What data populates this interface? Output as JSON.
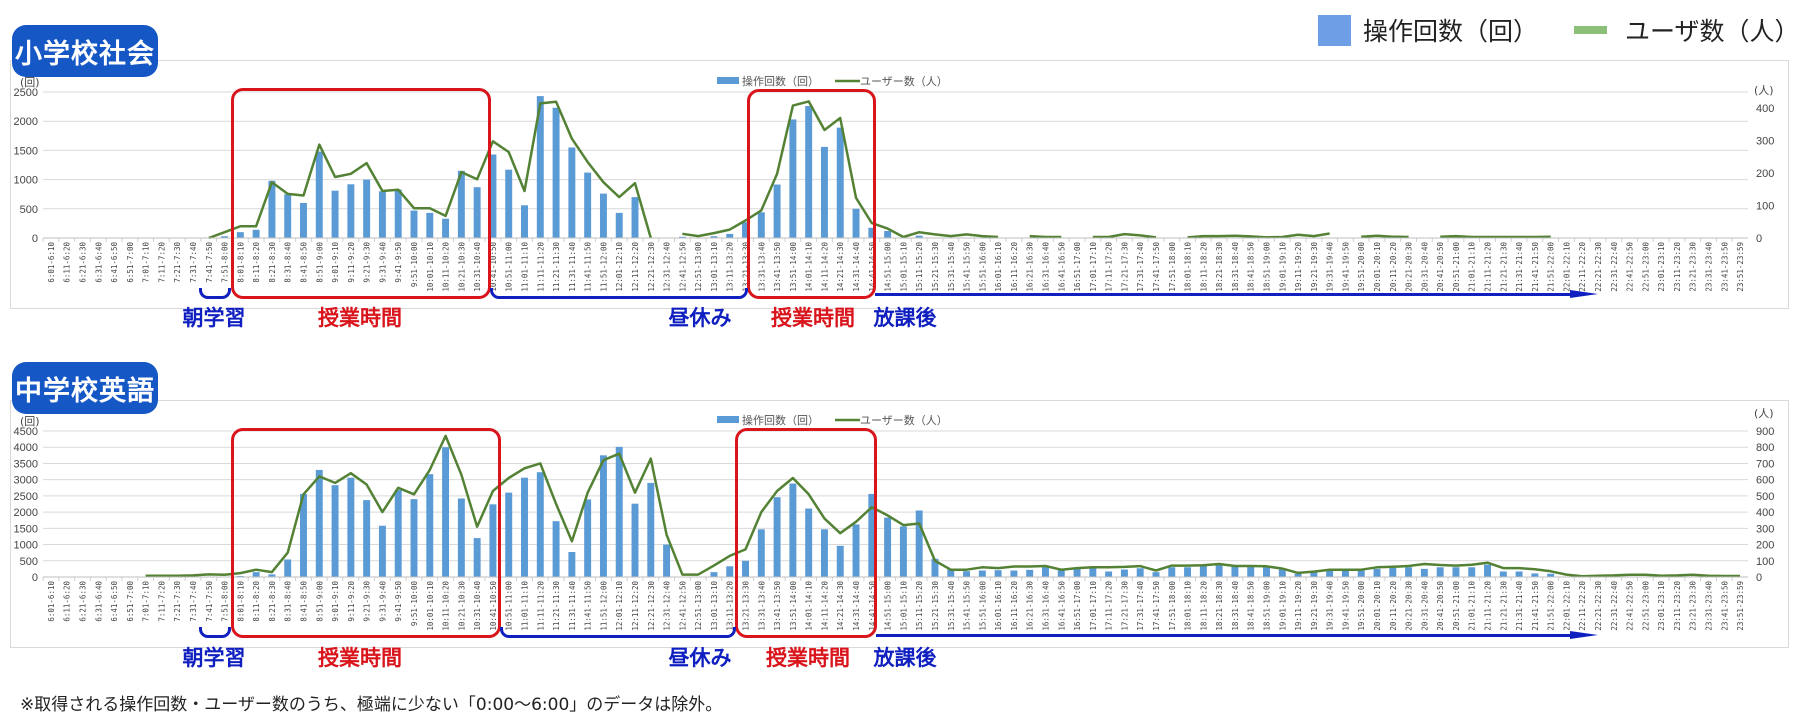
{
  "top_legend": {
    "bar_label": "操作回数（回）",
    "line_label": "ユーザ数（人）",
    "bar_color": "#6e9fe6",
    "line_color": "#8cbf7a"
  },
  "footnote": "※取得される操作回数・ユーザー数のうち、極端に少ない「0:00〜6:00」のデータは除外。",
  "annotations": {
    "morning": "朝学習",
    "class": "授業時間",
    "lunch": "昼休み",
    "after": "放課後",
    "class_color": "#d9141b",
    "period_color": "#1020c0"
  },
  "chart_data": [
    {
      "type": "bar+line",
      "title": "小学校社会",
      "bar_color": "#5b9bd5",
      "line_color": "#548235",
      "legend": {
        "bar": "操作回数（回）",
        "line": "ユーザー数（人）",
        "position": "top-center"
      },
      "y_left": {
        "unit": "(回)",
        "ylim": [
          0,
          2500
        ],
        "ticks": [
          0,
          500,
          1000,
          1500,
          2000,
          2500
        ]
      },
      "y_right": {
        "unit": "(人)",
        "ylim": [
          0,
          450
        ],
        "ticks": [
          0,
          100,
          200,
          300,
          400
        ]
      },
      "grid": true,
      "series": [
        {
          "name": "操作回数（回）",
          "kind": "bar",
          "values": [
            0,
            0,
            0,
            0,
            0,
            0,
            0,
            0,
            0,
            0,
            0,
            30,
            100,
            140,
            980,
            750,
            600,
            1480,
            810,
            920,
            1000,
            800,
            830,
            470,
            430,
            330,
            1150,
            870,
            1430,
            1170,
            560,
            2430,
            2230,
            1550,
            1120,
            760,
            430,
            700,
            0,
            0,
            20,
            0,
            30,
            70,
            270,
            440,
            915,
            2030,
            2260,
            1560,
            1890,
            500,
            175,
            120,
            0,
            40,
            0,
            0,
            0,
            0,
            0,
            0,
            0,
            0,
            0,
            0,
            0,
            0,
            0,
            0,
            0,
            0,
            0,
            0,
            0,
            0,
            0,
            0,
            0,
            0,
            0,
            0,
            0,
            0,
            0,
            0,
            0,
            0,
            0,
            0,
            0,
            0,
            0,
            0,
            0,
            0,
            0,
            0,
            0,
            0,
            0,
            0,
            0,
            0,
            0,
            0,
            0,
            0
          ]
        },
        {
          "name": "ユーザー数（人）",
          "kind": "line",
          "axis": "right",
          "values": [
            null,
            null,
            null,
            null,
            null,
            null,
            null,
            null,
            null,
            null,
            0,
            18,
            36,
            36,
            172,
            136,
            131,
            288,
            188,
            198,
            231,
            145,
            149,
            92,
            92,
            68,
            203,
            181,
            298,
            265,
            145,
            415,
            420,
            306,
            234,
            172,
            126,
            169,
            0,
            null,
            13,
            6,
            15,
            26,
            54,
            85,
            198,
            408,
            421,
            333,
            370,
            124,
            46,
            29,
            3,
            18,
            11,
            6,
            11,
            6,
            3,
            null,
            6,
            3,
            3,
            null,
            3,
            3,
            12,
            8,
            2,
            null,
            2,
            6,
            6,
            7,
            5,
            2,
            3,
            10,
            6,
            14,
            null,
            4,
            7,
            4,
            3,
            null,
            4,
            6,
            3,
            3,
            3,
            3,
            3,
            4,
            null,
            null,
            null,
            null,
            null,
            null,
            null,
            null,
            null,
            null,
            null,
            null
          ]
        }
      ]
    },
    {
      "type": "bar+line",
      "title": "中学校英語",
      "bar_color": "#5b9bd5",
      "line_color": "#548235",
      "legend": {
        "bar": "操作回数（回）",
        "line": "ユーザー数（人）",
        "position": "top-center"
      },
      "y_left": {
        "unit": "(回)",
        "ylim": [
          0,
          4500
        ],
        "ticks": [
          0,
          500,
          1000,
          1500,
          2000,
          2500,
          3000,
          3500,
          4000,
          4500
        ]
      },
      "y_right": {
        "unit": "(人)",
        "ylim": [
          0,
          900
        ],
        "ticks": [
          0,
          100,
          200,
          300,
          400,
          500,
          600,
          700,
          800,
          900
        ]
      },
      "grid": true,
      "series": [
        {
          "name": "操作回数（回）",
          "kind": "bar",
          "values": [
            0,
            0,
            0,
            0,
            0,
            0,
            0,
            0,
            0,
            0,
            0,
            0,
            30,
            150,
            80,
            540,
            2560,
            3300,
            2830,
            3060,
            2370,
            1580,
            2680,
            2400,
            3170,
            4000,
            2420,
            1200,
            2240,
            2600,
            3060,
            3230,
            1720,
            770,
            2390,
            3750,
            4010,
            2260,
            2900,
            1000,
            0,
            0,
            150,
            330,
            500,
            1470,
            2460,
            2880,
            2110,
            1470,
            960,
            1620,
            2560,
            1830,
            1560,
            2050,
            560,
            230,
            180,
            200,
            210,
            200,
            220,
            300,
            240,
            270,
            270,
            170,
            230,
            270,
            150,
            300,
            300,
            350,
            380,
            320,
            320,
            300,
            230,
            100,
            160,
            230,
            200,
            200,
            250,
            280,
            300,
            250,
            300,
            300,
            300,
            380,
            170,
            170,
            110,
            100,
            0,
            0,
            0,
            0,
            0,
            0,
            0,
            0,
            0,
            0,
            0,
            0
          ]
        },
        {
          "name": "ユーザー数（人）",
          "kind": "line",
          "axis": "right",
          "values": [
            null,
            null,
            null,
            null,
            null,
            null,
            8,
            8,
            8,
            10,
            16,
            14,
            24,
            45,
            30,
            150,
            510,
            620,
            580,
            640,
            570,
            400,
            550,
            510,
            660,
            870,
            630,
            310,
            530,
            610,
            670,
            700,
            450,
            220,
            520,
            720,
            760,
            520,
            730,
            260,
            15,
            15,
            70,
            130,
            170,
            400,
            530,
            610,
            510,
            360,
            270,
            340,
            430,
            380,
            320,
            330,
            100,
            45,
            45,
            60,
            55,
            65,
            65,
            68,
            45,
            55,
            60,
            60,
            62,
            67,
            40,
            70,
            70,
            72,
            80,
            68,
            68,
            66,
            52,
            25,
            33,
            45,
            45,
            45,
            60,
            63,
            68,
            80,
            74,
            70,
            76,
            88,
            55,
            55,
            48,
            35,
            15,
            5,
            8,
            10,
            14,
            14,
            8,
            10,
            14,
            8,
            6,
            6
          ]
        }
      ]
    }
  ],
  "categories": [
    "6:01-6:10",
    "6:11-6:20",
    "6:21-6:30",
    "6:31-6:40",
    "6:41-6:50",
    "6:51-7:00",
    "7:01-7:10",
    "7:11-7:20",
    "7:21-7:30",
    "7:31-7:40",
    "7:41-7:50",
    "7:51-8:00",
    "8:01-8:10",
    "8:11-8:20",
    "8:21-8:30",
    "8:31-8:40",
    "8:41-8:50",
    "8:51-9:00",
    "9:01-9:10",
    "9:11-9:20",
    "9:21-9:30",
    "9:31-9:40",
    "9:41-9:50",
    "9:51-10:00",
    "10:01-10:10",
    "10:11-10:20",
    "10:21-10:30",
    "10:31-10:40",
    "10:41-10:50",
    "10:51-11:00",
    "11:01-11:10",
    "11:11-11:20",
    "11:21-11:30",
    "11:31-11:40",
    "11:41-11:50",
    "11:51-12:00",
    "12:01-12:10",
    "12:11-12:20",
    "12:21-12:30",
    "12:31-12:40",
    "12:41-12:50",
    "12:51-13:00",
    "13:01-13:10",
    "13:11-13:20",
    "13:21-13:30",
    "13:31-13:40",
    "13:41-13:50",
    "13:51-14:00",
    "14:01-14:10",
    "14:11-14:20",
    "14:21-14:30",
    "14:31-14:40",
    "14:41-14:50",
    "14:51-15:00",
    "15:01-15:10",
    "15:11-15:20",
    "15:21-15:30",
    "15:31-15:40",
    "15:41-15:50",
    "15:51-16:00",
    "16:01-16:10",
    "16:11-16:20",
    "16:21-16:30",
    "16:31-16:40",
    "16:41-16:50",
    "16:51-17:00",
    "17:01-17:10",
    "17:11-17:20",
    "17:21-17:30",
    "17:31-17:40",
    "17:41-17:50",
    "17:51-18:00",
    "18:01-18:10",
    "18:11-18:20",
    "18:21-18:30",
    "18:31-18:40",
    "18:41-18:50",
    "18:51-19:00",
    "19:01-19:10",
    "19:11-19:20",
    "19:21-19:30",
    "19:31-19:40",
    "19:41-19:50",
    "19:51-20:00",
    "20:01-20:10",
    "20:11-20:20",
    "20:21-20:30",
    "20:31-20:40",
    "20:41-20:50",
    "20:51-21:00",
    "21:01-21:10",
    "21:11-21:20",
    "21:21-21:30",
    "21:31-21:40",
    "21:41-21:50",
    "21:51-22:00",
    "22:01-22:10",
    "22:11-22:20",
    "22:21-22:30",
    "22:31-22:40",
    "22:41-22:50",
    "22:51-23:00",
    "23:01-23:10",
    "23:11-23:20",
    "23:21-23:30",
    "23:31-23:40",
    "23:41-23:50",
    "23:51-23:59"
  ]
}
